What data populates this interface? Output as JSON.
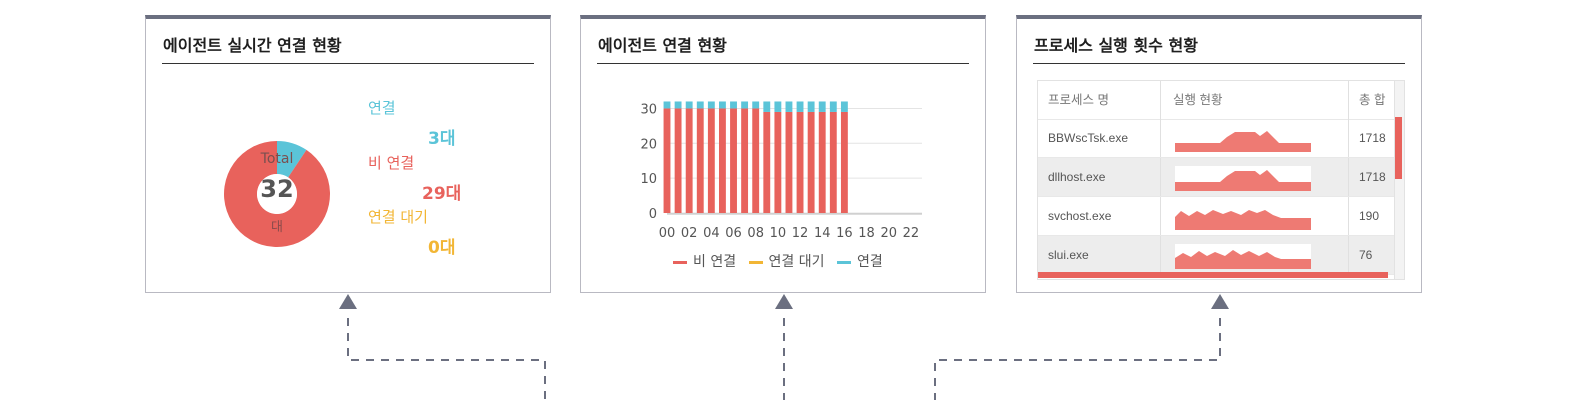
{
  "panels": {
    "agent_realtime": {
      "title": "에이전트 실시간 연결 현황",
      "total_label": "Total",
      "total_value": "32",
      "total_unit": "대",
      "legend": [
        {
          "label": "연결",
          "value": "3대",
          "color": "#5bc4d8"
        },
        {
          "label": "비 연결",
          "value": "29대",
          "color": "#e8625c"
        },
        {
          "label": "연결 대기",
          "value": "0대",
          "color": "#f2b635"
        }
      ]
    },
    "agent_connection": {
      "title": "에이전트 연결 현황",
      "legend": [
        {
          "label": "비 연결",
          "color": "#e8625c"
        },
        {
          "label": "연결 대기",
          "color": "#f2b635"
        },
        {
          "label": "연결",
          "color": "#5bc4d8"
        }
      ]
    },
    "process_exec": {
      "title": "프로세스 실행 횟수 현황",
      "columns": [
        "프로세스 명",
        "실행 현황",
        "총 합"
      ],
      "rows": [
        {
          "name": "BBWscTsk.exe",
          "total": "1718"
        },
        {
          "name": "dllhost.exe",
          "total": "1718"
        },
        {
          "name": "svchost.exe",
          "total": "190"
        },
        {
          "name": "slui.exe",
          "total": "76"
        }
      ]
    }
  },
  "chart_data": [
    {
      "type": "pie",
      "labels": [
        "연결",
        "비 연결",
        "연결 대기"
      ],
      "values": [
        3,
        29,
        0
      ],
      "colors": [
        "#5bc4d8",
        "#e8625c",
        "#f2b635"
      ]
    },
    {
      "type": "bar",
      "stacked": true,
      "categories": [
        "00",
        "01",
        "02",
        "03",
        "04",
        "05",
        "06",
        "07",
        "08",
        "09",
        "10",
        "11",
        "12",
        "13",
        "14",
        "15",
        "16"
      ],
      "tick_labels": [
        "00",
        "02",
        "04",
        "06",
        "08",
        "10",
        "12",
        "14",
        "16",
        "18",
        "20",
        "22"
      ],
      "series": [
        {
          "name": "비 연결",
          "color": "#e8625c",
          "values": [
            30,
            30,
            30,
            30,
            30,
            30,
            30,
            30,
            30,
            29,
            29,
            29,
            29,
            29,
            29,
            29,
            29
          ]
        },
        {
          "name": "연결 대기",
          "color": "#f2b635",
          "values": [
            0,
            0,
            0,
            0,
            0,
            0,
            0,
            0,
            0,
            0,
            0,
            0,
            0,
            0,
            0,
            0,
            0
          ]
        },
        {
          "name": "연결",
          "color": "#5bc4d8",
          "values": [
            2,
            2,
            2,
            2,
            2,
            2,
            2,
            2,
            2,
            3,
            3,
            3,
            3,
            3,
            3,
            3,
            3
          ]
        }
      ],
      "x_range": [
        0,
        23
      ],
      "ylim": [
        0,
        33
      ],
      "yticks": [
        0,
        10,
        20,
        30
      ],
      "grid": true,
      "legend": "bottom"
    }
  ]
}
